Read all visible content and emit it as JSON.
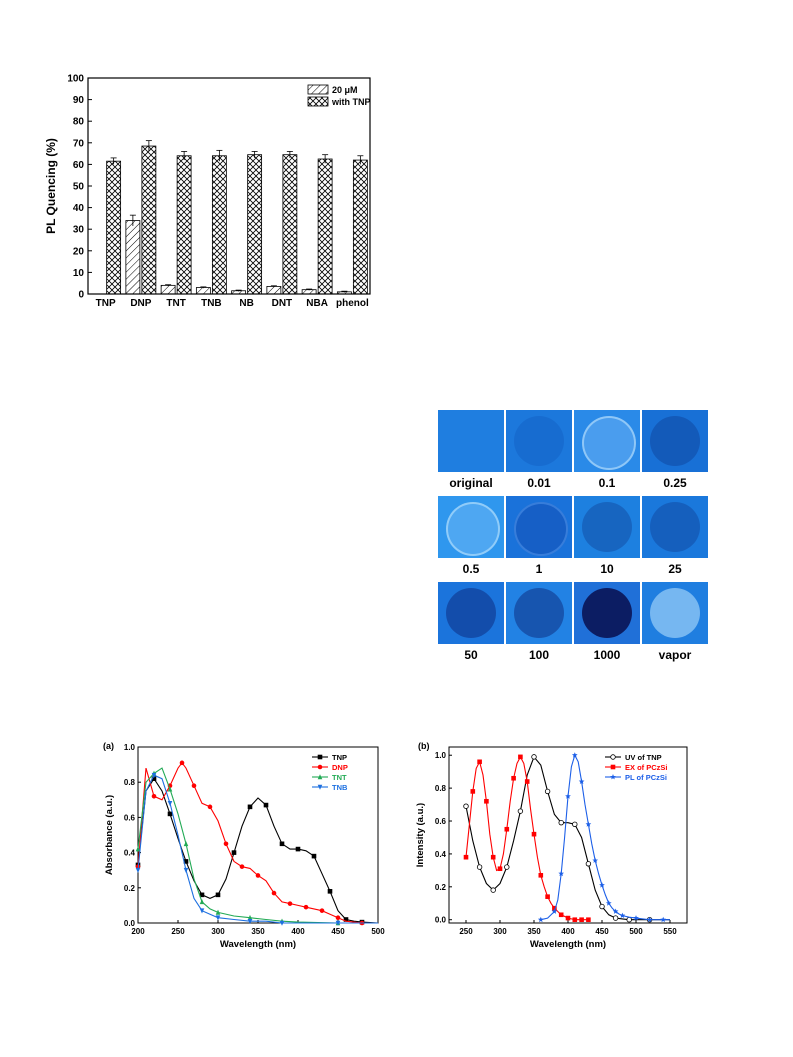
{
  "figures": {
    "bar": {
      "chart_data": {
        "type": "bar",
        "categories": [
          "TNP",
          "DNP",
          "TNT",
          "TNB",
          "NB",
          "DNT",
          "NBA",
          "phenol"
        ],
        "ylabel": "PL Quencing (%)",
        "xlabel": "",
        "ylim": [
          0,
          100
        ],
        "yticks": [
          0,
          10,
          20,
          30,
          40,
          50,
          60,
          70,
          80,
          90,
          100
        ],
        "legend_position": "top-right",
        "series": [
          {
            "name": "20 μM",
            "pattern": "diagonal",
            "values": [
              null,
              34,
              4,
              3,
              1.5,
              3.5,
              2,
              1
            ],
            "errors": [
              0,
              2.5,
              0.3,
              0.3,
              0.3,
              0.3,
              0.3,
              0.3
            ]
          },
          {
            "name": "with TNP",
            "pattern": "crosshatch",
            "values": [
              61.5,
              68.5,
              64,
              64,
              64.5,
              64.5,
              62.5,
              62
            ],
            "errors": [
              1.5,
              2.5,
              2,
              2.5,
              1.5,
              1.5,
              2,
              2
            ]
          }
        ]
      }
    },
    "photos": {
      "cells": [
        {
          "label": "original",
          "color": "#1f7ee0",
          "spot": "none"
        },
        {
          "label": "0.01",
          "color": "#1c78dc",
          "spot": "faint"
        },
        {
          "label": "0.1",
          "color": "#2a8ae8",
          "spot": "ring-light"
        },
        {
          "label": "0.25",
          "color": "#1870d6",
          "spot": "dark-faint"
        },
        {
          "label": "0.5",
          "color": "#2f97ee",
          "spot": "ring-light"
        },
        {
          "label": "1",
          "color": "#1a72da",
          "spot": "ring-dark"
        },
        {
          "label": "10",
          "color": "#1d80e0",
          "spot": "dark-faint"
        },
        {
          "label": "25",
          "color": "#1a78dc",
          "spot": "dark-faint"
        },
        {
          "label": "50",
          "color": "#1b74dc",
          "spot": "dark"
        },
        {
          "label": "100",
          "color": "#2282e4",
          "spot": "dark"
        },
        {
          "label": "1000",
          "color": "#2070d8",
          "spot": "very-dark"
        },
        {
          "label": "vapor",
          "color": "#1f7ee0",
          "spot": "light"
        }
      ]
    },
    "uv": {
      "panel_label": "(a)",
      "chart_data": {
        "type": "line",
        "xlabel": "Wavelength (nm)",
        "ylabel": "Absorbance (a.u.)",
        "xlim": [
          200,
          500
        ],
        "ylim": [
          0,
          1.0
        ],
        "xticks": [
          200,
          250,
          300,
          350,
          400,
          450,
          500
        ],
        "yticks": [
          "0.0",
          "0.2",
          "0.4",
          "0.6",
          "0.8",
          "1.0"
        ],
        "legend_position": "top-right",
        "series": [
          {
            "name": "TNP",
            "color": "#000000",
            "marker": "square",
            "x": [
              200,
              210,
              220,
              230,
              240,
              250,
              260,
              270,
              280,
              290,
              300,
              310,
              320,
              330,
              340,
              350,
              360,
              370,
              380,
              390,
              400,
              410,
              420,
              430,
              440,
              450,
              460,
              470,
              480,
              500
            ],
            "y": [
              0.33,
              0.75,
              0.82,
              0.75,
              0.62,
              0.48,
              0.35,
              0.24,
              0.16,
              0.14,
              0.16,
              0.25,
              0.4,
              0.55,
              0.66,
              0.71,
              0.67,
              0.55,
              0.45,
              0.42,
              0.42,
              0.41,
              0.38,
              0.28,
              0.18,
              0.07,
              0.02,
              0.01,
              0.005,
              0.0
            ]
          },
          {
            "name": "DNP",
            "color": "#ff0000",
            "marker": "circle",
            "x": [
              200,
              210,
              220,
              230,
              240,
              250,
              255,
              260,
              270,
              280,
              290,
              300,
              310,
              320,
              330,
              340,
              350,
              360,
              370,
              380,
              390,
              400,
              410,
              420,
              430,
              440,
              450,
              460,
              480,
              500
            ],
            "y": [
              0.32,
              0.88,
              0.72,
              0.7,
              0.78,
              0.88,
              0.91,
              0.88,
              0.78,
              0.68,
              0.66,
              0.58,
              0.45,
              0.35,
              0.32,
              0.31,
              0.27,
              0.24,
              0.17,
              0.12,
              0.11,
              0.1,
              0.09,
              0.08,
              0.07,
              0.05,
              0.03,
              0.01,
              0.0,
              0.0
            ]
          },
          {
            "name": "TNT",
            "color": "#22aa55",
            "marker": "triangle-up",
            "x": [
              200,
              210,
              220,
              230,
              240,
              250,
              260,
              270,
              280,
              290,
              300,
              320,
              340,
              360,
              380,
              400,
              450,
              500
            ],
            "y": [
              0.42,
              0.8,
              0.85,
              0.88,
              0.76,
              0.62,
              0.45,
              0.25,
              0.12,
              0.08,
              0.06,
              0.04,
              0.03,
              0.02,
              0.01,
              0.005,
              0.0,
              0.0
            ]
          },
          {
            "name": "TNB",
            "color": "#1c6fe0",
            "marker": "triangle-down",
            "x": [
              200,
              210,
              220,
              230,
              240,
              250,
              260,
              270,
              280,
              290,
              300,
              320,
              340,
              360,
              380,
              400,
              450,
              500
            ],
            "y": [
              0.3,
              0.75,
              0.84,
              0.82,
              0.68,
              0.5,
              0.3,
              0.14,
              0.07,
              0.05,
              0.03,
              0.02,
              0.01,
              0.01,
              0.0,
              0.0,
              0.0,
              0.0
            ]
          }
        ]
      }
    },
    "pl": {
      "panel_label": "(b)",
      "chart_data": {
        "type": "line",
        "xlabel": "Wavelength (nm)",
        "ylabel": "Intensity (a.u.)",
        "xlim": [
          225,
          575
        ],
        "ylim": [
          -0.02,
          1.05
        ],
        "xticks": [
          250,
          300,
          350,
          400,
          450,
          500,
          550
        ],
        "yticks": [
          "0.0",
          "0.2",
          "0.4",
          "0.6",
          "0.8",
          "1.0"
        ],
        "legend_position": "top-right",
        "series": [
          {
            "name": "UV of TNP",
            "color": "#000000",
            "marker": "open-circle",
            "x": [
              250,
              260,
              270,
              280,
              290,
              300,
              310,
              320,
              330,
              340,
              350,
              360,
              370,
              380,
              390,
              400,
              410,
              420,
              430,
              440,
              450,
              460,
              470,
              480,
              490,
              500,
              520,
              550
            ],
            "y": [
              0.69,
              0.48,
              0.32,
              0.22,
              0.18,
              0.22,
              0.32,
              0.48,
              0.66,
              0.88,
              0.99,
              0.94,
              0.78,
              0.64,
              0.59,
              0.59,
              0.58,
              0.5,
              0.34,
              0.18,
              0.08,
              0.03,
              0.01,
              0.005,
              0.0,
              0.0,
              0.0,
              0.0
            ]
          },
          {
            "name": "EX of PCzSi",
            "color": "#ff0000",
            "marker": "square",
            "x": [
              250,
              255,
              260,
              265,
              270,
              275,
              280,
              285,
              290,
              295,
              300,
              305,
              310,
              315,
              320,
              325,
              330,
              335,
              340,
              345,
              350,
              355,
              360,
              365,
              370,
              375,
              380,
              385,
              390,
              395,
              400,
              405,
              410,
              415,
              420,
              425,
              430
            ],
            "y": [
              0.38,
              0.58,
              0.78,
              0.92,
              0.96,
              0.88,
              0.72,
              0.52,
              0.38,
              0.3,
              0.31,
              0.4,
              0.55,
              0.72,
              0.86,
              0.95,
              0.99,
              0.95,
              0.84,
              0.67,
              0.52,
              0.38,
              0.27,
              0.2,
              0.14,
              0.1,
              0.07,
              0.05,
              0.03,
              0.02,
              0.01,
              0.005,
              0.0,
              0.0,
              0.0,
              0.0,
              0.0
            ]
          },
          {
            "name": "PL of PCzSi",
            "color": "#1c5fe8",
            "marker": "star",
            "x": [
              360,
              370,
              380,
              385,
              390,
              395,
              400,
              405,
              410,
              415,
              420,
              425,
              430,
              435,
              440,
              445,
              450,
              455,
              460,
              465,
              470,
              475,
              480,
              490,
              500,
              510,
              520,
              530,
              540,
              550
            ],
            "y": [
              0.0,
              0.01,
              0.05,
              0.12,
              0.28,
              0.5,
              0.75,
              0.93,
              1.0,
              0.96,
              0.84,
              0.7,
              0.58,
              0.46,
              0.36,
              0.28,
              0.21,
              0.15,
              0.1,
              0.07,
              0.05,
              0.035,
              0.025,
              0.015,
              0.01,
              0.005,
              0.0,
              0.0,
              0.0,
              0.0
            ]
          }
        ]
      }
    }
  }
}
